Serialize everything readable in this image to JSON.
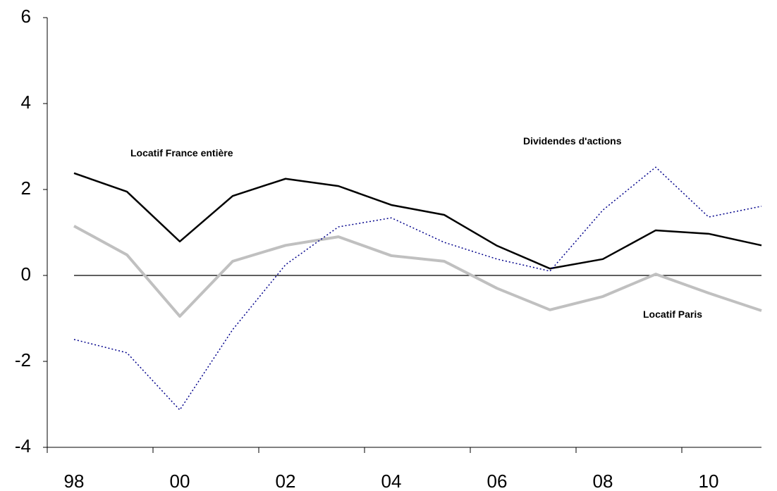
{
  "chart_data": {
    "type": "line",
    "categories": [
      "98",
      null,
      "00",
      null,
      "02",
      null,
      "04",
      null,
      "06",
      null,
      "08",
      null,
      "10",
      null
    ],
    "series": [
      {
        "name": "Locatif France entière",
        "color": "#000000",
        "line_style": "solid",
        "values": [
          2.38,
          1.95,
          0.79,
          1.85,
          2.25,
          2.08,
          1.64,
          1.41,
          0.69,
          0.16,
          0.38,
          1.05,
          0.97,
          0.7
        ]
      },
      {
        "name": "Locatif Paris",
        "color": "#c0c0c0",
        "line_style": "solid",
        "values": [
          1.15,
          0.48,
          -0.95,
          0.33,
          0.7,
          0.9,
          0.46,
          0.33,
          -0.3,
          -0.8,
          -0.49,
          0.03,
          -0.41,
          -0.82
        ]
      },
      {
        "name": "Dividendes d'actions",
        "color": "#00008b",
        "line_style": "dotted",
        "values": [
          -1.49,
          -1.8,
          -3.13,
          -1.26,
          0.25,
          1.13,
          1.34,
          0.77,
          0.38,
          0.1,
          1.52,
          2.52,
          1.36,
          1.61
        ]
      }
    ],
    "ylim": [
      -4,
      6
    ],
    "yticks": [
      -4,
      -2,
      0,
      2,
      4,
      6
    ],
    "zero_line": true
  }
}
